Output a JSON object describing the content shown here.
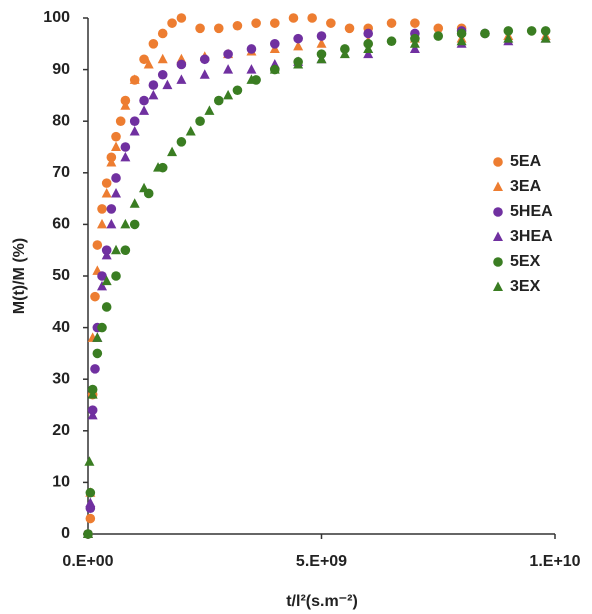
{
  "chart_data": {
    "type": "scatter",
    "xlabel": "t/l²(s.m⁻²)",
    "ylabel": "M(t)/M (%)",
    "xlim": [
      0,
      10000000000.0
    ],
    "ylim": [
      0,
      100
    ],
    "xticks": [
      {
        "value": 0,
        "label": "0.E+00"
      },
      {
        "value": 5000000000.0,
        "label": "5.E+09"
      },
      {
        "value": 10000000000.0,
        "label": "1.E+10"
      }
    ],
    "yticks": [
      0,
      10,
      20,
      30,
      40,
      50,
      60,
      70,
      80,
      90,
      100
    ],
    "legend": "right",
    "series": [
      {
        "name": "5EA",
        "color": "#ED7D31",
        "marker": "circle",
        "x": [
          0,
          50000000.0,
          100000000.0,
          150000000.0,
          200000000.0,
          300000000.0,
          400000000.0,
          500000000.0,
          600000000.0,
          700000000.0,
          800000000.0,
          1000000000.0,
          1200000000.0,
          1400000000.0,
          1600000000.0,
          1800000000.0,
          2000000000.0,
          2400000000.0,
          2800000000.0,
          3200000000.0,
          3600000000.0,
          4000000000.0,
          4400000000.0,
          4800000000.0,
          5200000000.0,
          5600000000.0,
          6000000000.0,
          6500000000.0,
          7000000000.0,
          7500000000.0,
          8000000000.0
        ],
        "values": [
          0,
          3,
          27,
          46,
          56,
          63,
          68,
          73,
          77,
          80,
          84,
          88,
          92,
          95,
          97,
          99,
          100,
          98,
          98,
          98.5,
          99,
          99,
          100,
          100,
          99,
          98,
          98,
          99,
          99,
          98,
          98
        ]
      },
      {
        "name": "3EA",
        "color": "#ED7D31",
        "marker": "triangle",
        "x": [
          0,
          50000000.0,
          100000000.0,
          200000000.0,
          300000000.0,
          400000000.0,
          500000000.0,
          600000000.0,
          800000000.0,
          1000000000.0,
          1300000000.0,
          1600000000.0,
          2000000000.0,
          2500000000.0,
          3000000000.0,
          3500000000.0,
          4000000000.0,
          4500000000.0,
          5000000000.0,
          6000000000.0,
          7000000000.0,
          8000000000.0,
          9000000000.0,
          9800000000.0
        ],
        "values": [
          0,
          8,
          38,
          51,
          60,
          66,
          72,
          75,
          83,
          88,
          91,
          92,
          92,
          92.5,
          93,
          93.5,
          94,
          94.5,
          95,
          95.5,
          96,
          96,
          96.5,
          96.5
        ]
      },
      {
        "name": "5HEA",
        "color": "#7030A0",
        "marker": "circle",
        "x": [
          0,
          50000000.0,
          100000000.0,
          150000000.0,
          200000000.0,
          300000000.0,
          400000000.0,
          500000000.0,
          600000000.0,
          800000000.0,
          1000000000.0,
          1200000000.0,
          1400000000.0,
          1600000000.0,
          2000000000.0,
          2500000000.0,
          3000000000.0,
          3500000000.0,
          4000000000.0,
          4500000000.0,
          5000000000.0,
          6000000000.0,
          7000000000.0,
          8000000000.0,
          8500000000.0
        ],
        "values": [
          0,
          5,
          24,
          32,
          40,
          50,
          55,
          63,
          69,
          75,
          80,
          84,
          87,
          89,
          91,
          92,
          93,
          94,
          95,
          96,
          96.5,
          97,
          97,
          97.5,
          97
        ]
      },
      {
        "name": "3HEA",
        "color": "#7030A0",
        "marker": "triangle",
        "x": [
          0,
          50000000.0,
          100000000.0,
          200000000.0,
          300000000.0,
          400000000.0,
          500000000.0,
          600000000.0,
          800000000.0,
          1000000000.0,
          1200000000.0,
          1400000000.0,
          1700000000.0,
          2000000000.0,
          2500000000.0,
          3000000000.0,
          3500000000.0,
          4000000000.0,
          4500000000.0,
          5000000000.0,
          6000000000.0,
          7000000000.0,
          8000000000.0,
          9000000000.0,
          9800000000.0
        ],
        "values": [
          0,
          6,
          23,
          38,
          48,
          54,
          60,
          66,
          73,
          78,
          82,
          85,
          87,
          88,
          89,
          90,
          90,
          91,
          91.5,
          92,
          93,
          94,
          95,
          95.5,
          96
        ]
      },
      {
        "name": "5EX",
        "color": "#3A7D22",
        "marker": "circle",
        "x": [
          0,
          50000000.0,
          100000000.0,
          200000000.0,
          300000000.0,
          400000000.0,
          600000000.0,
          800000000.0,
          1000000000.0,
          1300000000.0,
          1600000000.0,
          2000000000.0,
          2400000000.0,
          2800000000.0,
          3200000000.0,
          3600000000.0,
          4000000000.0,
          4500000000.0,
          5000000000.0,
          5500000000.0,
          6000000000.0,
          6500000000.0,
          7000000000.0,
          7500000000.0,
          8000000000.0,
          8500000000.0,
          9000000000.0,
          9500000000.0,
          9800000000.0
        ],
        "values": [
          0,
          8,
          28,
          35,
          40,
          44,
          50,
          55,
          60,
          66,
          71,
          76,
          80,
          84,
          86,
          88,
          90,
          91.5,
          93,
          94,
          95,
          95.5,
          96,
          96.5,
          97,
          97,
          97.5,
          97.5,
          97.5
        ]
      },
      {
        "name": "3EX",
        "color": "#3A7D22",
        "marker": "triangle",
        "x": [
          0,
          30000000.0,
          100000000.0,
          200000000.0,
          400000000.0,
          600000000.0,
          800000000.0,
          1000000000.0,
          1200000000.0,
          1500000000.0,
          1800000000.0,
          2200000000.0,
          2600000000.0,
          3000000000.0,
          3500000000.0,
          4000000000.0,
          4500000000.0,
          5000000000.0,
          5500000000.0,
          6000000000.0,
          7000000000.0,
          8000000000.0,
          9000000000.0,
          9800000000.0
        ],
        "values": [
          0,
          14,
          27,
          38,
          49,
          55,
          60,
          64,
          67,
          71,
          74,
          78,
          82,
          85,
          88,
          90,
          91,
          92,
          93,
          94,
          95,
          95.5,
          96,
          96
        ]
      }
    ]
  }
}
